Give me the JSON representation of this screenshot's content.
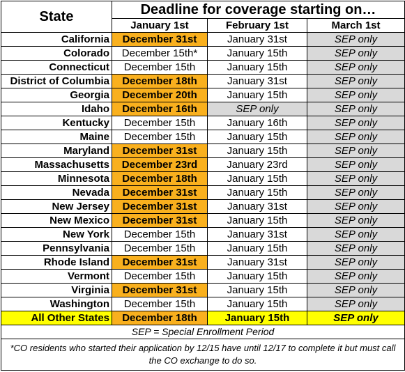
{
  "header": {
    "state_label": "State",
    "deadline_label": "Deadline for coverage starting on…",
    "columns": [
      "January 1st",
      "February 1st",
      "March 1st"
    ]
  },
  "rows": [
    {
      "state": "California",
      "jan": "December 31st",
      "jan_highlight": true,
      "feb": "January 31st",
      "feb_sep": false,
      "mar": "SEP only"
    },
    {
      "state": "Colorado",
      "jan": "December 15th*",
      "jan_highlight": false,
      "feb": "January 15th",
      "feb_sep": false,
      "mar": "SEP only"
    },
    {
      "state": "Connecticut",
      "jan": "December 15th",
      "jan_highlight": false,
      "feb": "January 15th",
      "feb_sep": false,
      "mar": "SEP only"
    },
    {
      "state": "District of Columbia",
      "jan": "December 18th",
      "jan_highlight": true,
      "feb": "January 31st",
      "feb_sep": false,
      "mar": "SEP only"
    },
    {
      "state": "Georgia",
      "jan": "December 20th",
      "jan_highlight": true,
      "feb": "January 15th",
      "feb_sep": false,
      "mar": "SEP only"
    },
    {
      "state": "Idaho",
      "jan": "December 16th",
      "jan_highlight": true,
      "feb": "SEP only",
      "feb_sep": true,
      "mar": "SEP only"
    },
    {
      "state": "Kentucky",
      "jan": "December 15th",
      "jan_highlight": false,
      "feb": "January 16th",
      "feb_sep": false,
      "mar": "SEP only"
    },
    {
      "state": "Maine",
      "jan": "December 15th",
      "jan_highlight": false,
      "feb": "January 15th",
      "feb_sep": false,
      "mar": "SEP only"
    },
    {
      "state": "Maryland",
      "jan": "December 31st",
      "jan_highlight": true,
      "feb": "January 15th",
      "feb_sep": false,
      "mar": "SEP only"
    },
    {
      "state": "Massachusetts",
      "jan": "December 23rd",
      "jan_highlight": true,
      "feb": "January 23rd",
      "feb_sep": false,
      "mar": "SEP only"
    },
    {
      "state": "Minnesota",
      "jan": "December 18th",
      "jan_highlight": true,
      "feb": "January 15th",
      "feb_sep": false,
      "mar": "SEP only"
    },
    {
      "state": "Nevada",
      "jan": "December 31st",
      "jan_highlight": true,
      "feb": "January 15th",
      "feb_sep": false,
      "mar": "SEP only"
    },
    {
      "state": "New Jersey",
      "jan": "December 31st",
      "jan_highlight": true,
      "feb": "January 31st",
      "feb_sep": false,
      "mar": "SEP only"
    },
    {
      "state": "New Mexico",
      "jan": "December 31st",
      "jan_highlight": true,
      "feb": "January 15th",
      "feb_sep": false,
      "mar": "SEP only"
    },
    {
      "state": "New York",
      "jan": "December 15th",
      "jan_highlight": false,
      "feb": "January 31st",
      "feb_sep": false,
      "mar": "SEP only"
    },
    {
      "state": "Pennsylvania",
      "jan": "December 15th",
      "jan_highlight": false,
      "feb": "January 15th",
      "feb_sep": false,
      "mar": "SEP only"
    },
    {
      "state": "Rhode Island",
      "jan": "December 31st",
      "jan_highlight": true,
      "feb": "January 31st",
      "feb_sep": false,
      "mar": "SEP only"
    },
    {
      "state": "Vermont",
      "jan": "December 15th",
      "jan_highlight": false,
      "feb": "January 15th",
      "feb_sep": false,
      "mar": "SEP only"
    },
    {
      "state": "Virginia",
      "jan": "December 31st",
      "jan_highlight": true,
      "feb": "January 15th",
      "feb_sep": false,
      "mar": "SEP only"
    },
    {
      "state": "Washington",
      "jan": "December 15th",
      "jan_highlight": false,
      "feb": "January 15th",
      "feb_sep": false,
      "mar": "SEP only"
    }
  ],
  "total_row": {
    "state": "All Other States",
    "jan": "December 18th",
    "feb": "January 15th",
    "mar": "SEP only"
  },
  "notes": {
    "sep_definition": "SEP = Special Enrollment Period",
    "footnote": "*CO residents who started their application by 12/15 have until 12/17 to complete it but must call the CO exchange to do so."
  },
  "colors": {
    "highlight_orange": "#f9b01e",
    "sep_gray": "#d9d9d9",
    "total_yellow": "#ffff00"
  }
}
